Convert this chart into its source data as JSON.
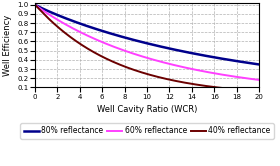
{
  "title": "",
  "xlabel": "Well Cavity Ratio (WCR)",
  "ylabel": "Well Efficiency",
  "xlim": [
    0,
    20
  ],
  "ylim": [
    0.1,
    1.02
  ],
  "yticks": [
    0.1,
    0.2,
    0.3,
    0.4,
    0.5,
    0.6,
    0.7,
    0.8,
    0.9,
    1.0
  ],
  "xticks": [
    0,
    2,
    4,
    6,
    8,
    10,
    12,
    14,
    16,
    18,
    20
  ],
  "curves": [
    {
      "label": "80% reflectance",
      "color": "#00008B",
      "linewidth": 1.8,
      "k": 0.0515,
      "power": 1.35
    },
    {
      "label": "60% reflectance",
      "color": "#FF00FF",
      "linewidth": 1.4,
      "k": 0.095,
      "power": 1.25
    },
    {
      "label": "40% reflectance",
      "color": "#6B0000",
      "linewidth": 1.4,
      "k": 0.155,
      "power": 1.18
    }
  ],
  "grid_color": "#aaaaaa",
  "grid_linestyle": "--",
  "background_color": "#ffffff",
  "legend_fontsize": 5.5,
  "axis_fontsize": 6,
  "tick_fontsize": 5
}
